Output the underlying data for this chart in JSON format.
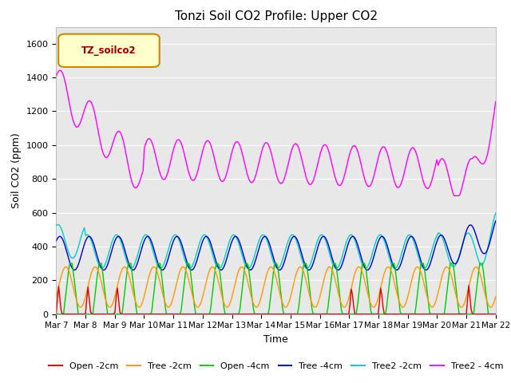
{
  "title": "Tonzi Soil CO2 Profile: Upper CO2",
  "xlabel": "Time",
  "ylabel": "Soil CO2 (ppm)",
  "ylim": [
    0,
    1700
  ],
  "background_color": "#e8e8e8",
  "legend_label": "TZ_soilco2",
  "series": {
    "Open_2cm": {
      "color": "#dd0000",
      "label": "Open -2cm"
    },
    "Tree_2cm": {
      "color": "#ff9900",
      "label": "Tree -2cm"
    },
    "Open_4cm": {
      "color": "#00cc00",
      "label": "Open -4cm"
    },
    "Tree_4cm": {
      "color": "#0000cc",
      "label": "Tree -4cm"
    },
    "Tree2_2cm": {
      "color": "#00cccc",
      "label": "Tree2 -2cm"
    },
    "Tree2_4cm": {
      "color": "#ff00ff",
      "label": "Tree2 - 4cm"
    }
  },
  "xtick_labels": [
    "Mar 7",
    "Mar 8",
    "Mar 9",
    "Mar 10",
    "Mar 11",
    "Mar 12",
    "Mar 13",
    "Mar 14",
    "Mar 15",
    "Mar 16",
    "Mar 17",
    "Mar 18",
    "Mar 19",
    "Mar 20",
    "Mar 21",
    "Mar 22"
  ],
  "ytick_labels": [
    0,
    200,
    400,
    600,
    800,
    1000,
    1200,
    1400,
    1600
  ],
  "figsize": [
    6.4,
    4.8
  ],
  "dpi": 100
}
